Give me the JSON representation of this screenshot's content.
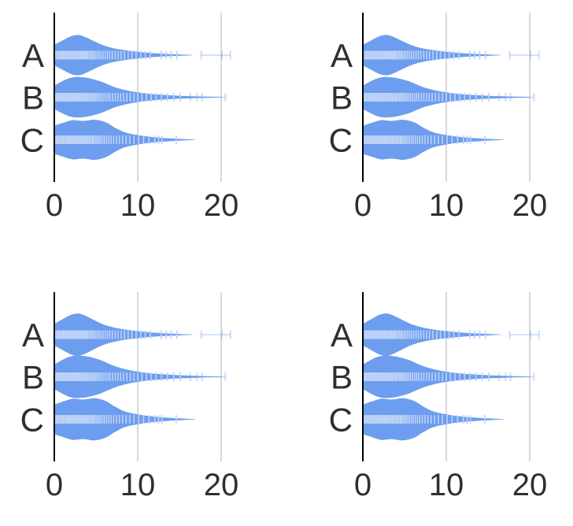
{
  "figure": {
    "background": "#ffffff",
    "panel_count": 4,
    "description": "2x2 grid of identical horizontal violin plots with rug tick marks"
  },
  "colors": {
    "violin_fill": "#6d9dee",
    "rug_tick": "#bcd2f7",
    "outlier_tick": "#6d9dee",
    "gridline": "#d9d9d9",
    "axis_line": "#000000",
    "label_text": "#2f2f2f"
  },
  "chart_data": {
    "type": "violin",
    "orientation": "horizontal",
    "title": "",
    "xlabel": "",
    "ylabel": "",
    "categories": [
      "A",
      "B",
      "C"
    ],
    "x_tick_labels": [
      "0",
      "10",
      "20"
    ],
    "x_tick_values": [
      0,
      10,
      20
    ],
    "xlim": [
      0,
      21.5
    ],
    "grid": "vertical gridlines at 10 and 20, solid black axis at 0",
    "legend": "none",
    "panels": [
      {
        "id": "top-left",
        "scale": 1.0
      },
      {
        "id": "top-right",
        "scale": 1.0
      },
      {
        "id": "bottom-left",
        "scale": 1.05
      },
      {
        "id": "bottom-right",
        "scale": 1.05
      }
    ],
    "series": [
      {
        "name": "A",
        "density_profile": [
          [
            0,
            13
          ],
          [
            0.7,
            17
          ],
          [
            1.4,
            21
          ],
          [
            2.0,
            24
          ],
          [
            2.6,
            25.5
          ],
          [
            3.2,
            25
          ],
          [
            3.8,
            22.5
          ],
          [
            4.5,
            19
          ],
          [
            5.2,
            15.5
          ],
          [
            6,
            12
          ],
          [
            7,
            9
          ],
          [
            8,
            7
          ],
          [
            9,
            5.5
          ],
          [
            10,
            4.3
          ],
          [
            11,
            3.2
          ],
          [
            12,
            2.4
          ],
          [
            13,
            1.8
          ],
          [
            14,
            1.3
          ],
          [
            15,
            0.9
          ],
          [
            15.8,
            0.5
          ],
          [
            16.5,
            0.25
          ]
        ],
        "rug": [
          0.12,
          0.3,
          0.42,
          0.55,
          0.62,
          0.78,
          0.9,
          0.98,
          1.1,
          1.18,
          1.32,
          1.4,
          1.55,
          1.62,
          1.78,
          1.9,
          2.02,
          2.1,
          2.22,
          2.35,
          2.5,
          2.58,
          2.72,
          2.85,
          2.92,
          3.08,
          3.2,
          3.32,
          3.45,
          3.6,
          3.75,
          3.9,
          4.05,
          4.22,
          4.4,
          4.58,
          4.75,
          4.95,
          5.15,
          5.38,
          5.6,
          5.85,
          6.1,
          6.38,
          6.65,
          6.95,
          7.3,
          7.65,
          8.0,
          8.4,
          8.85,
          9.3,
          9.8,
          10.35,
          10.9,
          11.5,
          12.8,
          13.4,
          14.0,
          14.7
        ],
        "outliers": [
          17.6,
          20.1,
          21.1
        ]
      },
      {
        "name": "B",
        "density_profile": [
          [
            0,
            15
          ],
          [
            0.8,
            19.5
          ],
          [
            1.6,
            23.5
          ],
          [
            2.4,
            25.5
          ],
          [
            3.2,
            25.5
          ],
          [
            4,
            24.5
          ],
          [
            4.8,
            22.5
          ],
          [
            5.6,
            20
          ],
          [
            6.4,
            16.5
          ],
          [
            7.2,
            13
          ],
          [
            8,
            10.5
          ],
          [
            9,
            8
          ],
          [
            10,
            6.2
          ],
          [
            11,
            4.8
          ],
          [
            12,
            3.7
          ],
          [
            13,
            3
          ],
          [
            14,
            2.4
          ],
          [
            15,
            1.9
          ],
          [
            16,
            1.5
          ],
          [
            17,
            1.1
          ],
          [
            18,
            0.8
          ],
          [
            19,
            0.5
          ],
          [
            20,
            0.25
          ]
        ],
        "rug": [
          0.1,
          0.22,
          0.35,
          0.45,
          0.6,
          0.68,
          0.82,
          0.95,
          1.05,
          1.18,
          1.3,
          1.38,
          1.52,
          1.65,
          1.72,
          1.88,
          2.0,
          2.12,
          2.2,
          2.35,
          2.48,
          2.6,
          2.68,
          2.82,
          2.95,
          3.1,
          3.22,
          3.35,
          3.5,
          3.62,
          3.78,
          3.92,
          4.08,
          4.25,
          4.4,
          4.58,
          4.75,
          4.92,
          5.1,
          5.3,
          5.5,
          5.72,
          5.95,
          6.2,
          6.45,
          6.7,
          7.0,
          7.3,
          7.62,
          7.95,
          8.3,
          8.7,
          9.1,
          9.55,
          10.0,
          10.5,
          11.05,
          11.6,
          12.2,
          12.85,
          13.55,
          14.3,
          15.1
        ],
        "outliers": [
          16.3,
          17.1,
          17.7,
          20.5
        ]
      },
      {
        "name": "C",
        "density_profile": [
          [
            0,
            18
          ],
          [
            0.6,
            20
          ],
          [
            1.2,
            22
          ],
          [
            1.8,
            24
          ],
          [
            2.3,
            25
          ],
          [
            2.8,
            24.5
          ],
          [
            3.4,
            24
          ],
          [
            4.0,
            24.5
          ],
          [
            4.6,
            25.5
          ],
          [
            5.2,
            25
          ],
          [
            5.8,
            23.5
          ],
          [
            6.4,
            21
          ],
          [
            7.0,
            17
          ],
          [
            7.6,
            13.5
          ],
          [
            8.2,
            10.5
          ],
          [
            9,
            8
          ],
          [
            10,
            6
          ],
          [
            11,
            4.4
          ],
          [
            12,
            3.2
          ],
          [
            13,
            2.4
          ],
          [
            14,
            1.7
          ],
          [
            15,
            1.1
          ],
          [
            16,
            0.6
          ],
          [
            16.8,
            0.25
          ]
        ],
        "rug": [
          0.1,
          0.24,
          0.38,
          0.48,
          0.62,
          0.75,
          0.85,
          1.0,
          1.12,
          1.22,
          1.38,
          1.5,
          1.58,
          1.72,
          1.85,
          1.98,
          2.1,
          2.18,
          2.32,
          2.45,
          2.58,
          2.7,
          2.82,
          2.95,
          3.05,
          3.2,
          3.32,
          3.48,
          3.6,
          3.72,
          3.88,
          4.02,
          4.18,
          4.32,
          4.5,
          4.65,
          4.82,
          5.0,
          5.18,
          5.38,
          5.58,
          5.8,
          6.02,
          6.28,
          6.55,
          6.82,
          7.12,
          7.45,
          7.8,
          8.18,
          8.6,
          9.05,
          9.55,
          10.1,
          10.7,
          11.35,
          12.05,
          12.5,
          12.9,
          14.6
        ],
        "outliers": []
      }
    ]
  }
}
